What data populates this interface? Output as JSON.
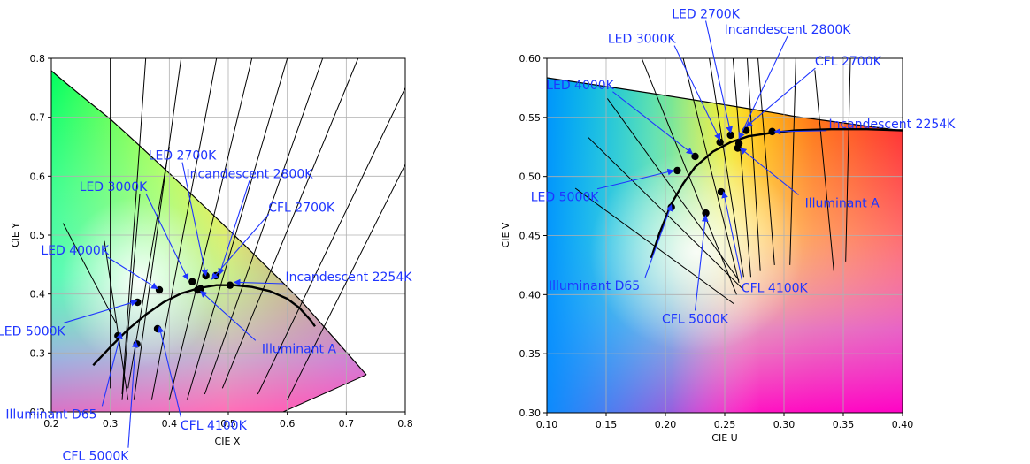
{
  "colors": {
    "annotation": "#1f35ff",
    "locus": "#000000",
    "points": "#000000",
    "grid": "#b0b0b0"
  },
  "chart_data": [
    {
      "type": "scatter",
      "title": "",
      "xlabel": "CIE X",
      "ylabel": "CIE Y",
      "xlim": [
        0.2,
        0.8
      ],
      "ylim": [
        0.2,
        0.8
      ],
      "xticks": [
        "0.2",
        "0.3",
        "0.4",
        "0.5",
        "0.6",
        "0.7",
        "0.8"
      ],
      "yticks": [
        "0.2",
        "0.3",
        "0.4",
        "0.5",
        "0.6",
        "0.7",
        "0.8"
      ],
      "grid": true,
      "background": "CIE 1931 chromaticity diagram",
      "planckian_locus": [
        [
          0.271,
          0.279
        ],
        [
          0.3,
          0.31
        ],
        [
          0.33,
          0.34
        ],
        [
          0.36,
          0.365
        ],
        [
          0.39,
          0.386
        ],
        [
          0.42,
          0.401
        ],
        [
          0.45,
          0.41
        ],
        [
          0.48,
          0.415
        ],
        [
          0.51,
          0.415
        ],
        [
          0.54,
          0.412
        ],
        [
          0.57,
          0.405
        ],
        [
          0.6,
          0.392
        ],
        [
          0.62,
          0.377
        ],
        [
          0.64,
          0.355
        ],
        [
          0.647,
          0.345
        ]
      ],
      "points": [
        {
          "label": "Incandescent 2254K",
          "x": 0.503,
          "y": 0.415
        },
        {
          "label": "Incandescent 2800K",
          "x": 0.453,
          "y": 0.409
        },
        {
          "label": "LED 2700K",
          "x": 0.462,
          "y": 0.431
        },
        {
          "label": "LED 3000K",
          "x": 0.439,
          "y": 0.421
        },
        {
          "label": "CFL 2700K",
          "x": 0.479,
          "y": 0.431
        },
        {
          "label": "LED 4000K",
          "x": 0.383,
          "y": 0.407
        },
        {
          "label": "LED 5000K",
          "x": 0.346,
          "y": 0.386
        },
        {
          "label": "Illuminant A",
          "x": 0.448,
          "y": 0.407
        },
        {
          "label": "Illuminant D65",
          "x": 0.313,
          "y": 0.329
        },
        {
          "label": "CFL 5000K",
          "x": 0.345,
          "y": 0.315
        },
        {
          "label": "CFL 4100K",
          "x": 0.38,
          "y": 0.341
        }
      ],
      "annotations": [
        {
          "label": "LED 2700K",
          "tx": 0.422,
          "ty": 0.628,
          "px": 0.462,
          "py": 0.431
        },
        {
          "label": "Incandescent 2800K",
          "tx": 0.536,
          "ty": 0.597,
          "px": 0.485,
          "py": 0.433
        },
        {
          "label": "LED 3000K",
          "tx": 0.305,
          "ty": 0.575,
          "px": 0.432,
          "py": 0.424
        },
        {
          "label": "CFL 2700K",
          "tx": 0.624,
          "ty": 0.54,
          "px": 0.472,
          "py": 0.425
        },
        {
          "label": "LED 4000K",
          "tx": 0.24,
          "ty": 0.467,
          "px": 0.38,
          "py": 0.409
        },
        {
          "label": "Incandescent 2254K",
          "tx": 0.704,
          "ty": 0.422,
          "px": 0.51,
          "py": 0.42
        },
        {
          "label": "LED 5000K",
          "tx": 0.166,
          "ty": 0.33,
          "px": 0.345,
          "py": 0.388
        },
        {
          "label": "Illuminant A",
          "tx": 0.62,
          "ty": 0.3,
          "px": 0.453,
          "py": 0.405
        },
        {
          "label": "Illuminant D65",
          "tx": 0.2,
          "ty": 0.189,
          "px": 0.318,
          "py": 0.334
        },
        {
          "label": "CFL 4100K",
          "tx": 0.475,
          "ty": 0.17,
          "px": 0.383,
          "py": 0.345
        },
        {
          "label": "CFL 5000K",
          "tx": 0.275,
          "ty": 0.118,
          "px": 0.343,
          "py": 0.32
        }
      ]
    },
    {
      "type": "scatter",
      "title": "",
      "xlabel": "CIE U",
      "ylabel": "CIE V",
      "xlim": [
        0.1,
        0.4
      ],
      "ylim": [
        0.3,
        0.6
      ],
      "xticks": [
        "0.10",
        "0.15",
        "0.20",
        "0.25",
        "0.30",
        "0.35",
        "0.40"
      ],
      "yticks": [
        "0.30",
        "0.35",
        "0.40",
        "0.45",
        "0.50",
        "0.55",
        "0.60"
      ],
      "grid": true,
      "background": "CIE 1960 UCS chromaticity diagram",
      "planckian_locus": [
        [
          0.188,
          0.431
        ],
        [
          0.195,
          0.452
        ],
        [
          0.205,
          0.477
        ],
        [
          0.215,
          0.494
        ],
        [
          0.225,
          0.508
        ],
        [
          0.24,
          0.521
        ],
        [
          0.255,
          0.529
        ],
        [
          0.27,
          0.534
        ],
        [
          0.29,
          0.537
        ],
        [
          0.31,
          0.539
        ],
        [
          0.34,
          0.54
        ],
        [
          0.37,
          0.54
        ],
        [
          0.4,
          0.539
        ]
      ],
      "points": [
        {
          "label": "Incandescent 2254K",
          "x": 0.29,
          "y": 0.538
        },
        {
          "label": "LED 2700K",
          "x": 0.255,
          "y": 0.535
        },
        {
          "label": "CFL 2700K",
          "x": 0.268,
          "y": 0.539
        },
        {
          "label": "LED 3000K",
          "x": 0.246,
          "y": 0.529
        },
        {
          "label": "Incandescent 2800K",
          "x": 0.262,
          "y": 0.528
        },
        {
          "label": "Illuminant A",
          "x": 0.261,
          "y": 0.524
        },
        {
          "label": "LED 4000K",
          "x": 0.225,
          "y": 0.517
        },
        {
          "label": "LED 5000K",
          "x": 0.21,
          "y": 0.505
        },
        {
          "label": "Illuminant D65",
          "x": 0.205,
          "y": 0.474
        },
        {
          "label": "CFL 5000K",
          "x": 0.234,
          "y": 0.469
        },
        {
          "label": "CFL 4100K",
          "x": 0.247,
          "y": 0.487
        }
      ],
      "annotations": [
        {
          "label": "LED 2700K",
          "tx": 0.234,
          "ty": 0.634,
          "px": 0.255,
          "py": 0.537
        },
        {
          "label": "Incandescent 2800K",
          "tx": 0.303,
          "ty": 0.621,
          "px": 0.262,
          "py": 0.532
        },
        {
          "label": "LED 3000K",
          "tx": 0.18,
          "ty": 0.613,
          "px": 0.246,
          "py": 0.531
        },
        {
          "label": "CFL 2700K",
          "tx": 0.354,
          "ty": 0.594,
          "px": 0.268,
          "py": 0.542
        },
        {
          "label": "LED 4000K",
          "tx": 0.128,
          "ty": 0.574,
          "px": 0.223,
          "py": 0.519
        },
        {
          "label": "Incandescent 2254K",
          "tx": 0.391,
          "ty": 0.541,
          "px": 0.292,
          "py": 0.538
        },
        {
          "label": "LED 5000K",
          "tx": 0.115,
          "ty": 0.479,
          "px": 0.207,
          "py": 0.505
        },
        {
          "label": "Illuminant A",
          "tx": 0.349,
          "ty": 0.474,
          "px": 0.263,
          "py": 0.524
        },
        {
          "label": "Illuminant D65",
          "tx": 0.14,
          "ty": 0.404,
          "px": 0.205,
          "py": 0.476
        },
        {
          "label": "CFL 4100K",
          "tx": 0.292,
          "ty": 0.402,
          "px": 0.249,
          "py": 0.487
        },
        {
          "label": "CFL 5000K",
          "tx": 0.225,
          "ty": 0.376,
          "px": 0.234,
          "py": 0.467
        }
      ]
    }
  ]
}
